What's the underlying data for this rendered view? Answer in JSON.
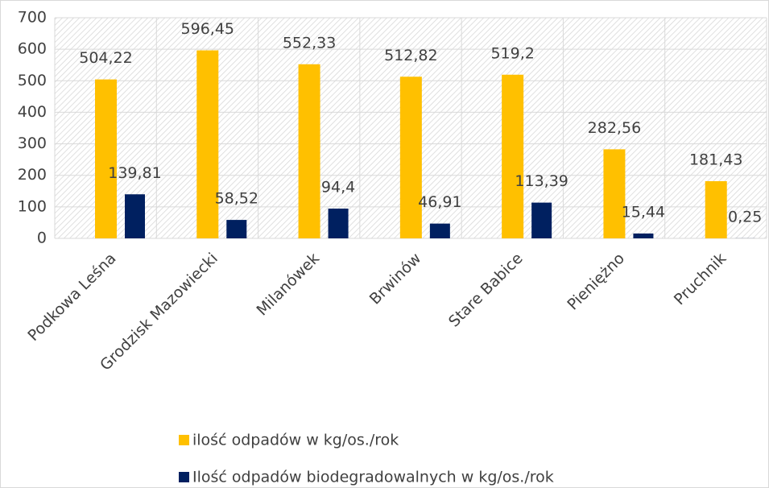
{
  "chart_data": {
    "type": "bar",
    "categories": [
      "Podkowa Leśna",
      "Grodzisk Mazowiecki",
      "Milanówek",
      "Brwinów",
      "Stare Babice",
      "Pieniężno",
      "Pruchnik"
    ],
    "series": [
      {
        "name": "ilość odpadów w kg/os./rok",
        "color": "#ffc000",
        "values": [
          504.22,
          596.45,
          552.33,
          512.82,
          519.2,
          282.56,
          181.43
        ],
        "value_labels": [
          "504,22",
          "596,45",
          "552,33",
          "512,82",
          "519,2",
          "282,56",
          "181,43"
        ]
      },
      {
        "name": "Ilość odpadów biodegradowalnych w kg/os./rok",
        "color": "#002060",
        "values": [
          139.81,
          58.52,
          94.4,
          46.91,
          113.39,
          15.44,
          0.25
        ],
        "value_labels": [
          "139,81",
          "58,52",
          "94,4",
          "46,91",
          "113,39",
          "15,44",
          "0,25"
        ]
      }
    ],
    "ylim": [
      0,
      700
    ],
    "yticks": [
      0,
      100,
      200,
      300,
      400,
      500,
      600,
      700
    ],
    "grid": true
  }
}
